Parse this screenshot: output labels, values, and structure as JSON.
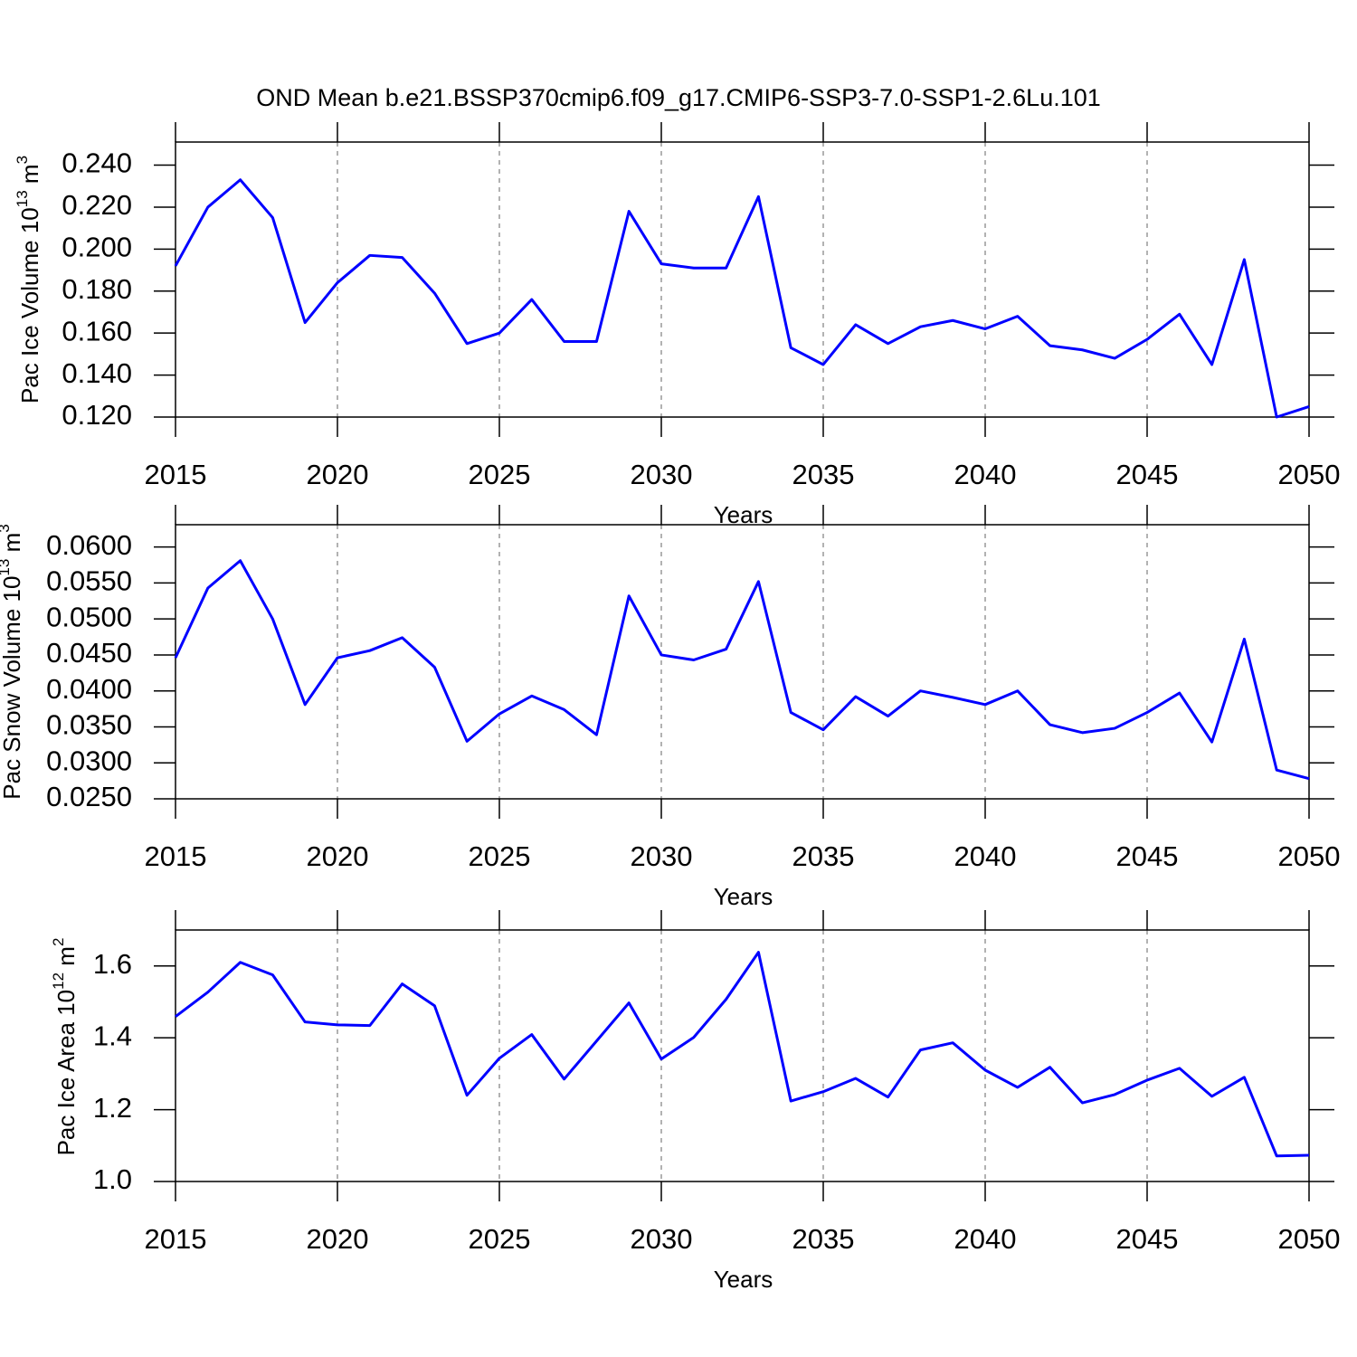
{
  "title": "OND Mean b.e21.BSSP370cmip6.f09_g17.CMIP6-SSP3-7.0-SSP1-2.6Lu.101",
  "chart_data": [
    {
      "type": "line",
      "ylabel": [
        "Pac Ice Volume 10",
        "13",
        " m",
        "3"
      ],
      "xlabel": "Years",
      "x": [
        2015,
        2016,
        2017,
        2018,
        2019,
        2020,
        2021,
        2022,
        2023,
        2024,
        2025,
        2026,
        2027,
        2028,
        2029,
        2030,
        2031,
        2032,
        2033,
        2034,
        2035,
        2036,
        2037,
        2038,
        2039,
        2040,
        2041,
        2042,
        2043,
        2044,
        2045,
        2046,
        2047,
        2048,
        2049,
        2050
      ],
      "series": [
        {
          "color": "#0000ff",
          "values": [
            0.192,
            0.22,
            0.233,
            0.215,
            0.165,
            0.184,
            0.197,
            0.196,
            0.179,
            0.155,
            0.16,
            0.176,
            0.156,
            0.156,
            0.218,
            0.193,
            0.191,
            0.191,
            0.225,
            0.153,
            0.145,
            0.164,
            0.155,
            0.163,
            0.166,
            0.162,
            0.168,
            0.154,
            0.152,
            0.148,
            0.157,
            0.169,
            0.145,
            0.195,
            0.12,
            0.125
          ]
        }
      ],
      "xlim": [
        2015,
        2050
      ],
      "xticks": [
        2015,
        2020,
        2025,
        2030,
        2035,
        2040,
        2045,
        2050
      ],
      "ylim": [
        0.12,
        0.251
      ],
      "yticks": [
        {
          "value": 0.12,
          "label": "0.120"
        },
        {
          "value": 0.14,
          "label": "0.140"
        },
        {
          "value": 0.16,
          "label": "0.160"
        },
        {
          "value": 0.18,
          "label": "0.180"
        },
        {
          "value": 0.2,
          "label": "0.200"
        },
        {
          "value": 0.22,
          "label": "0.220"
        },
        {
          "value": 0.24,
          "label": "0.240"
        }
      ],
      "grid": true
    },
    {
      "type": "line",
      "ylabel": [
        "Pac Snow Volume 10",
        "13",
        " m",
        "3"
      ],
      "xlabel": "Years",
      "x": [
        2015,
        2016,
        2017,
        2018,
        2019,
        2020,
        2021,
        2022,
        2023,
        2024,
        2025,
        2026,
        2027,
        2028,
        2029,
        2030,
        2031,
        2032,
        2033,
        2034,
        2035,
        2036,
        2037,
        2038,
        2039,
        2040,
        2041,
        2042,
        2043,
        2044,
        2045,
        2046,
        2047,
        2048,
        2049,
        2050
      ],
      "series": [
        {
          "color": "#0000ff",
          "values": [
            0.0446,
            0.0543,
            0.0581,
            0.05,
            0.0381,
            0.0446,
            0.0456,
            0.0474,
            0.0433,
            0.033,
            0.0368,
            0.0393,
            0.0374,
            0.0339,
            0.0532,
            0.045,
            0.0443,
            0.0458,
            0.0552,
            0.037,
            0.0346,
            0.0392,
            0.0365,
            0.04,
            0.0391,
            0.0381,
            0.04,
            0.0353,
            0.0342,
            0.0348,
            0.037,
            0.0397,
            0.0329,
            0.0472,
            0.029,
            0.0278
          ]
        }
      ],
      "xlim": [
        2015,
        2050
      ],
      "xticks": [
        2015,
        2020,
        2025,
        2030,
        2035,
        2040,
        2045,
        2050
      ],
      "ylim": [
        0.025,
        0.0631
      ],
      "yticks": [
        {
          "value": 0.025,
          "label": "0.0250"
        },
        {
          "value": 0.03,
          "label": "0.0300"
        },
        {
          "value": 0.035,
          "label": "0.0350"
        },
        {
          "value": 0.04,
          "label": "0.0400"
        },
        {
          "value": 0.045,
          "label": "0.0450"
        },
        {
          "value": 0.05,
          "label": "0.0500"
        },
        {
          "value": 0.055,
          "label": "0.0550"
        },
        {
          "value": 0.06,
          "label": "0.0600"
        }
      ],
      "grid": true
    },
    {
      "type": "line",
      "ylabel": [
        "Pac Ice Area 10",
        "12",
        " m",
        "2"
      ],
      "xlabel": "Years",
      "x": [
        2015,
        2016,
        2017,
        2018,
        2019,
        2020,
        2021,
        2022,
        2023,
        2024,
        2025,
        2026,
        2027,
        2028,
        2029,
        2030,
        2031,
        2032,
        2033,
        2034,
        2035,
        2036,
        2037,
        2038,
        2039,
        2040,
        2041,
        2042,
        2043,
        2044,
        2045,
        2046,
        2047,
        2048,
        2049,
        2050
      ],
      "series": [
        {
          "color": "#0000ff",
          "values": [
            1.459,
            1.527,
            1.61,
            1.575,
            1.444,
            1.436,
            1.434,
            1.55,
            1.489,
            1.24,
            1.343,
            1.409,
            1.285,
            1.391,
            1.497,
            1.341,
            1.401,
            1.507,
            1.638,
            1.224,
            1.25,
            1.287,
            1.235,
            1.366,
            1.386,
            1.31,
            1.262,
            1.318,
            1.219,
            1.242,
            1.282,
            1.315,
            1.237,
            1.29,
            1.071,
            1.073
          ]
        }
      ],
      "xlim": [
        2015,
        2050
      ],
      "xticks": [
        2015,
        2020,
        2025,
        2030,
        2035,
        2040,
        2045,
        2050
      ],
      "ylim": [
        1.0,
        1.7
      ],
      "yticks": [
        {
          "value": 1.0,
          "label": "1.0"
        },
        {
          "value": 1.2,
          "label": "1.2"
        },
        {
          "value": 1.4,
          "label": "1.4"
        },
        {
          "value": 1.6,
          "label": "1.6"
        }
      ],
      "grid": true
    }
  ]
}
